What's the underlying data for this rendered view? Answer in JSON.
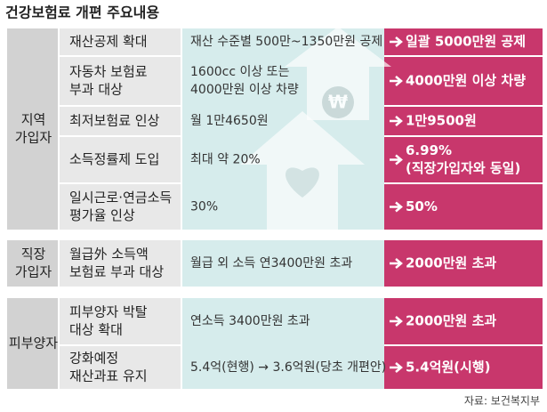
{
  "header": {
    "title": "건강보험료 개편 주요내용"
  },
  "groups": [
    {
      "label": [
        "지역",
        "가입자"
      ]
    },
    {
      "label": [
        "직장",
        "가입자"
      ]
    },
    {
      "label": [
        "피부양자"
      ]
    }
  ],
  "rows": [
    {
      "item": [
        "재산공제 확대"
      ],
      "current": [
        "재산 수준별 500만~1350만원 공제"
      ],
      "change": [
        "일괄 5000만원 공제"
      ]
    },
    {
      "item": [
        "자동차 보험료",
        "부과 대상"
      ],
      "current": [
        "1600cc 이상 또는",
        "4000만원 이상 차량"
      ],
      "change": [
        "4000만원 이상 차량"
      ]
    },
    {
      "item": [
        "최저보험료 인상"
      ],
      "current": [
        "월 1만4650원"
      ],
      "change": [
        "1만9500원"
      ]
    },
    {
      "item": [
        "소득정률제 도입"
      ],
      "current": [
        "최대 약 20%"
      ],
      "change": [
        "6.99%",
        "(직장가입자와 동일)"
      ]
    },
    {
      "item": [
        "일시근로·연금소득",
        "평가율 인상"
      ],
      "current": [
        "30%"
      ],
      "change": [
        "50%"
      ]
    },
    {
      "item": [
        "월급外 소득액",
        "보험료 부과 대상"
      ],
      "current": [
        "월급 외 소득 연3400만원 초과"
      ],
      "change": [
        "2000만원 초과"
      ]
    },
    {
      "item": [
        "피부양자 박탈",
        "대상 확대"
      ],
      "current": [
        "연소득 3400만원 초과"
      ],
      "change": [
        "2000만원 초과"
      ]
    },
    {
      "item": [
        "강화예정",
        "재산과표 유지"
      ],
      "current": [
        "5.4억(현행) → 3.6억원(당초 개편안)"
      ],
      "change": [
        "5.4억원(시행)"
      ]
    }
  ],
  "source": "자료: 보건복지부"
}
